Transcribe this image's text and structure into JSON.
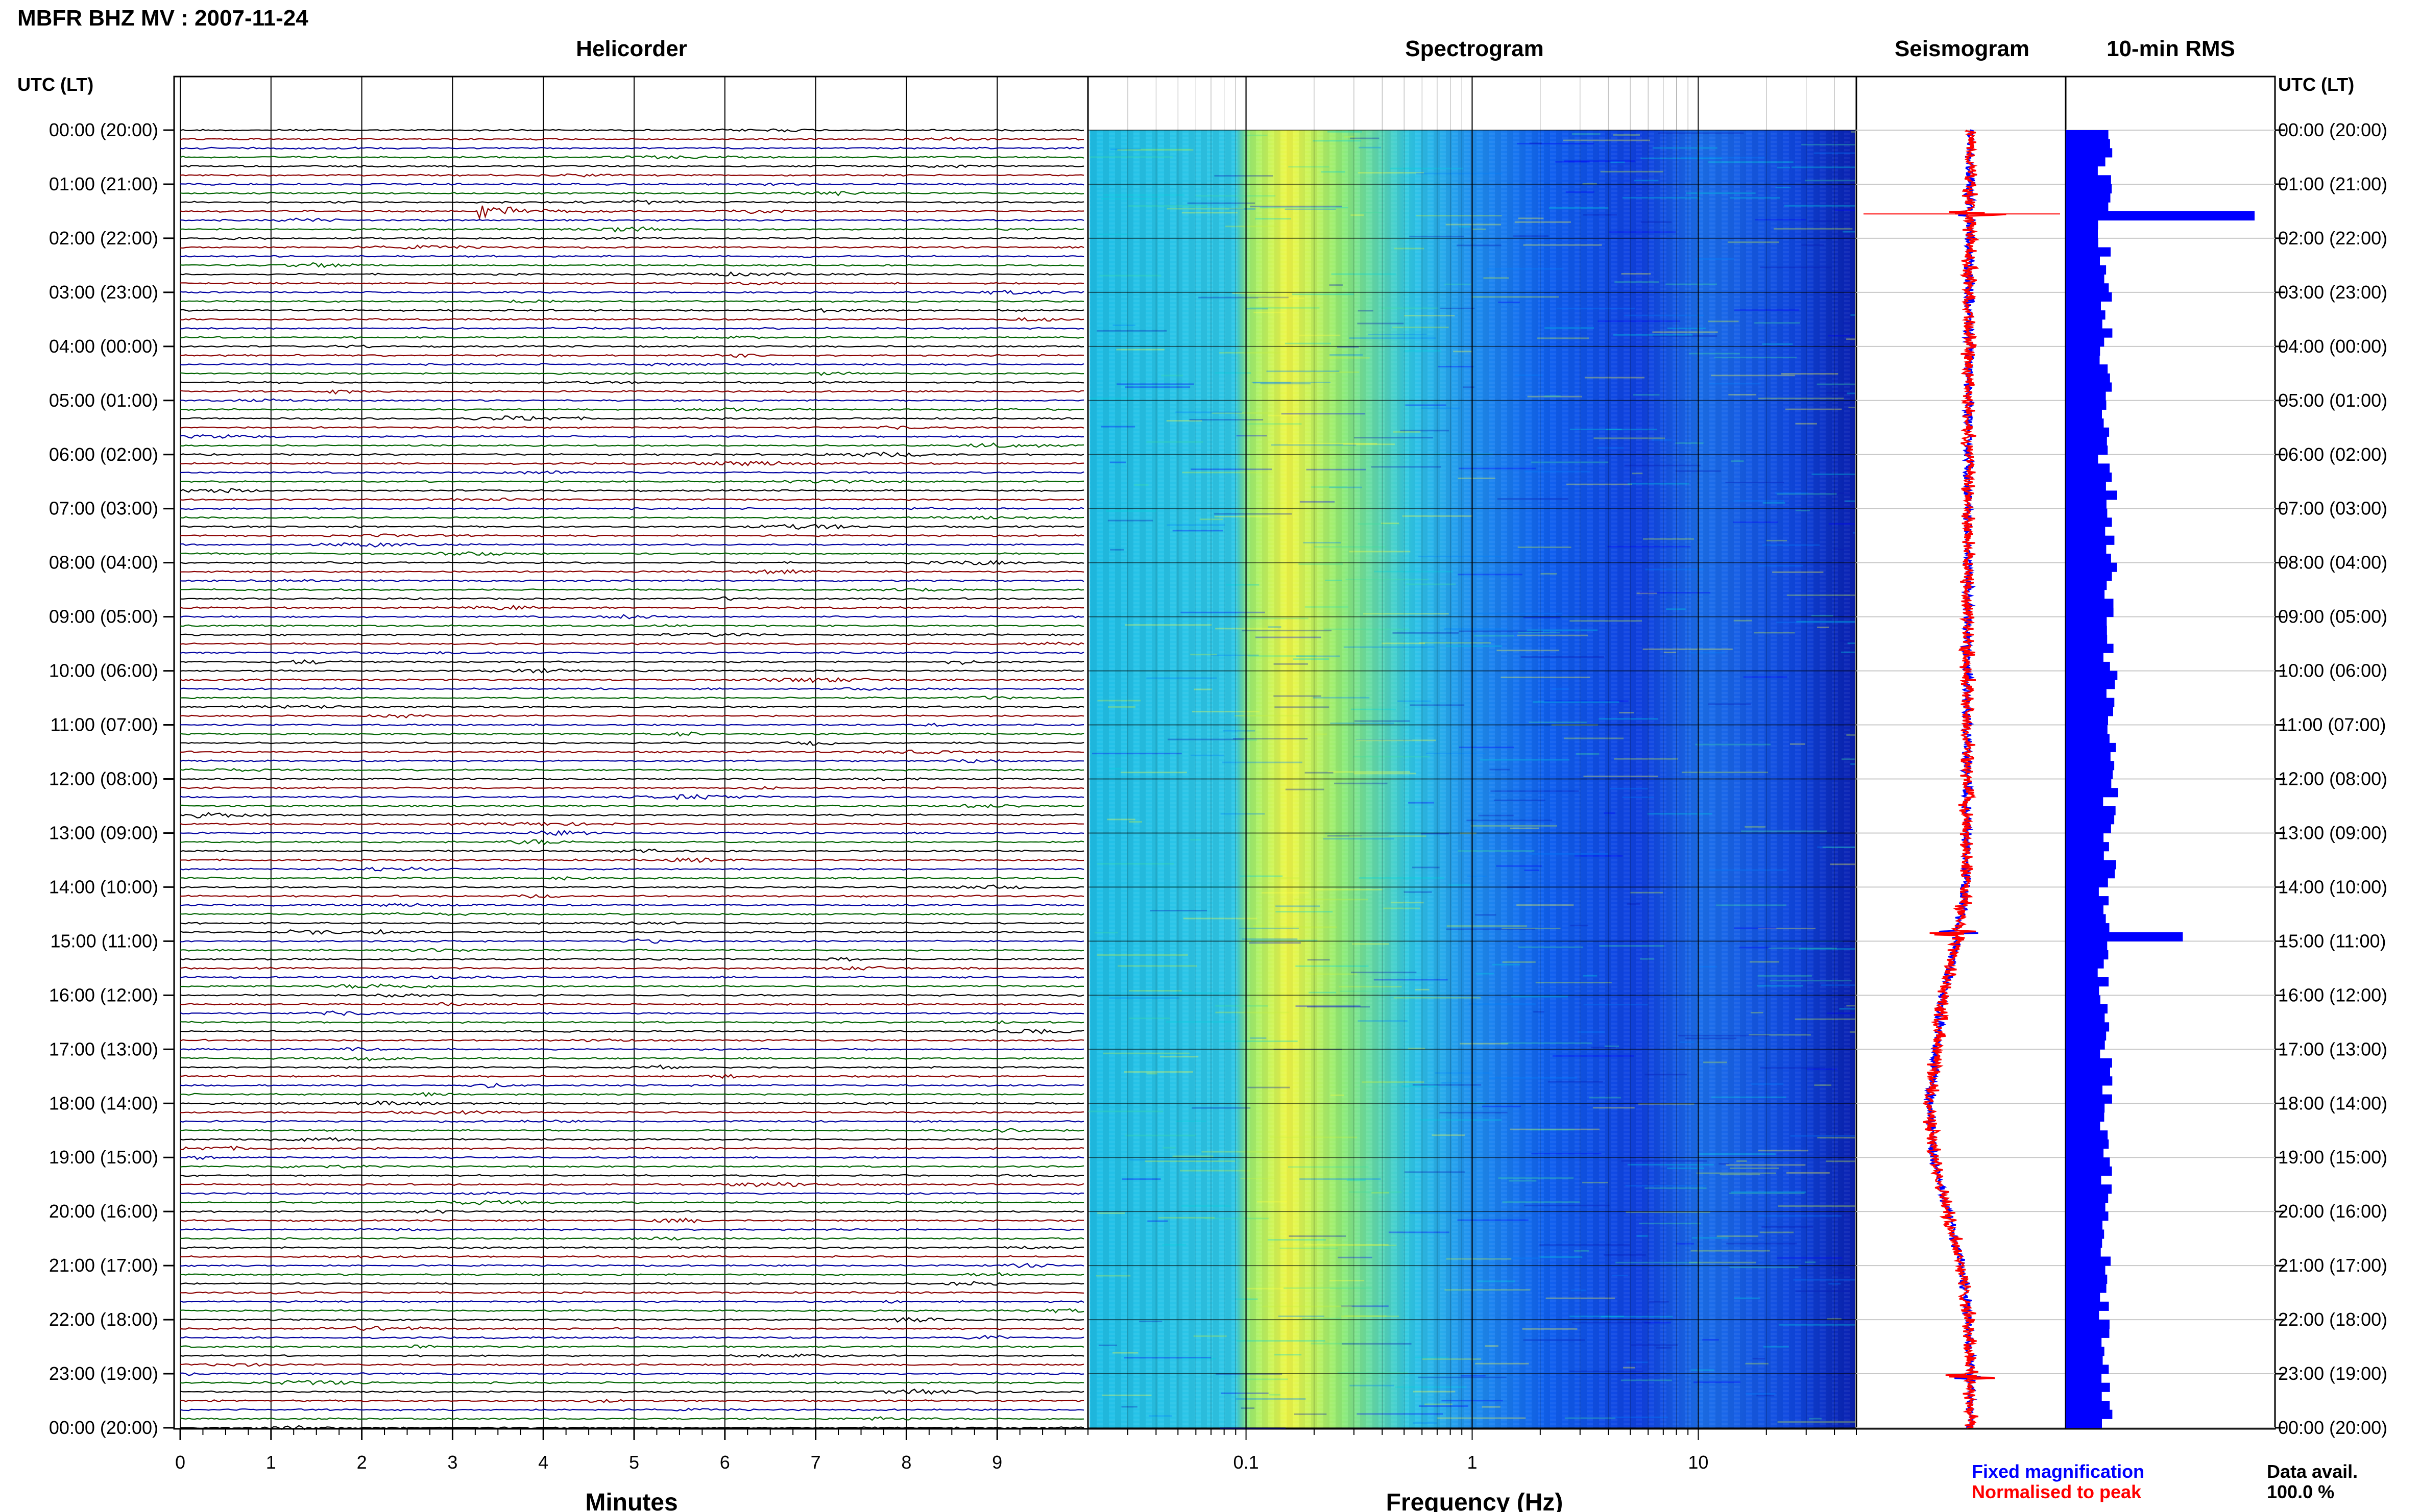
{
  "header": {
    "title": "MBFR BHZ MV : 2007-11-24",
    "utc_header_left": "UTC (LT)",
    "utc_header_right": "UTC (LT)"
  },
  "panels": {
    "helicorder": "Helicorder",
    "spectrogram": "Spectrogram",
    "seismogram": "Seismogram",
    "rms": "10-min RMS"
  },
  "time_labels": [
    "00:00 (20:00)",
    "01:00 (21:00)",
    "02:00 (22:00)",
    "03:00 (23:00)",
    "04:00 (00:00)",
    "05:00 (01:00)",
    "06:00 (02:00)",
    "07:00 (03:00)",
    "08:00 (04:00)",
    "09:00 (05:00)",
    "10:00 (06:00)",
    "11:00 (07:00)",
    "12:00 (08:00)",
    "13:00 (09:00)",
    "14:00 (10:00)",
    "15:00 (11:00)",
    "16:00 (12:00)",
    "17:00 (13:00)",
    "18:00 (14:00)",
    "19:00 (15:00)",
    "20:00 (16:00)",
    "21:00 (17:00)",
    "22:00 (18:00)",
    "23:00 (19:00)",
    "00:00 (20:00)"
  ],
  "legend": {
    "fixed": "Fixed magnification",
    "normalised": "Normalised to peak",
    "fixed_color": "#0000ff",
    "normalised_color": "#ff0000"
  },
  "data_availability": {
    "label": "Data avail.",
    "value": "100.0 %"
  },
  "chart_data": [
    {
      "type": "line",
      "panel": "helicorder",
      "xlabel": "Minutes",
      "x_ticks": [
        "0",
        "1",
        "2",
        "3",
        "4",
        "5",
        "6",
        "7",
        "8",
        "9"
      ],
      "xlim": [
        0,
        10
      ],
      "rows": 144,
      "trace_colors": [
        "#000000",
        "#8b0000",
        "#0000a0",
        "#006400"
      ],
      "events": [
        {
          "time_utc": "01:30",
          "minute": 3.3,
          "duration_min": 2.2,
          "amplitude": 14,
          "color": "#8b0000"
        },
        {
          "time_utc": "14:50",
          "minute": 1.2,
          "duration_min": 2.5,
          "amplitude": 7,
          "color": "#000000"
        },
        {
          "time_utc": "09:50",
          "minute": 8.5,
          "duration_min": 0.4,
          "amplitude": 5,
          "color": "#000000"
        }
      ]
    },
    {
      "type": "heatmap",
      "panel": "spectrogram",
      "xlabel": "Frequency (Hz)",
      "x_scale": "log",
      "xlim": [
        0.02,
        50
      ],
      "x_ticks": [
        "0.1",
        "1",
        "10"
      ],
      "colormap": [
        "#0a1ab4",
        "#0000ff",
        "#0080ff",
        "#00d4e0",
        "#40e0a0",
        "#c8f040",
        "#ffff40"
      ],
      "peak_band_hz": [
        0.13,
        0.3
      ]
    },
    {
      "type": "line",
      "panel": "seismogram",
      "series": [
        {
          "name": "Fixed magnification",
          "color": "#0000ff"
        },
        {
          "name": "Normalised to peak",
          "color": "#ff0000"
        }
      ],
      "trend_hours": [
        0,
        4,
        8,
        12,
        14,
        15,
        16,
        18,
        19,
        20,
        21,
        22,
        23,
        24
      ],
      "trend_offset": [
        0,
        -0.02,
        -0.03,
        -0.04,
        -0.05,
        -0.15,
        -0.3,
        -0.45,
        -0.4,
        -0.25,
        -0.1,
        -0.02,
        0,
        0
      ],
      "spikes_hours": [
        1.55,
        14.85,
        23.05
      ]
    },
    {
      "type": "bar",
      "panel": "rms",
      "orientation": "horizontal",
      "bar_interval_min": 10,
      "xlim": [
        0,
        1
      ],
      "baseline": 0.2,
      "spikes": [
        {
          "time_utc": "01:30",
          "value": 1.0
        },
        {
          "time_utc": "14:50",
          "value": 0.62
        }
      ]
    }
  ]
}
